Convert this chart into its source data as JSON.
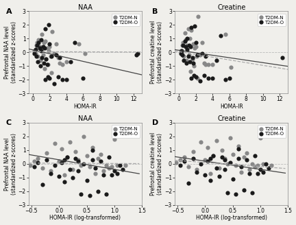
{
  "panels": [
    {
      "label": "A",
      "title": "NAA",
      "xlabel": "HOMA-IR",
      "ylabel": "Prefrontal NAA level\n(standardized z-scores)",
      "xlim": [
        -0.5,
        13
      ],
      "ylim": [
        -3.0,
        3.0
      ],
      "xticks": [
        0,
        2,
        4,
        6,
        8,
        10,
        12
      ],
      "yticks": [
        -3,
        -2,
        -1,
        0,
        1,
        2,
        3
      ],
      "line_dark_slope": -0.14,
      "line_dark_intercept": 0.18,
      "line_gray_slope": -0.002,
      "line_gray_intercept": 0.05,
      "group_gray_x": [
        0.2,
        0.3,
        0.4,
        0.5,
        0.6,
        0.7,
        0.8,
        0.9,
        1.0,
        1.1,
        1.2,
        1.3,
        1.4,
        1.5,
        1.6,
        1.7,
        1.8,
        1.9,
        2.0,
        2.1,
        2.2,
        2.3,
        2.5,
        2.8,
        3.0,
        3.2,
        3.5,
        4.0,
        5.5,
        6.2
      ],
      "group_gray_y": [
        0.1,
        -0.1,
        0.5,
        0.7,
        -0.3,
        0.9,
        0.4,
        -0.6,
        0.2,
        1.3,
        -0.2,
        0.7,
        -1.2,
        0.8,
        -0.5,
        0.3,
        -0.9,
        0.1,
        0.4,
        -0.3,
        -1.5,
        1.5,
        -0.1,
        0.6,
        -0.4,
        -0.8,
        -0.9,
        -0.7,
        0.6,
        -0.1
      ],
      "group_dark_x": [
        0.2,
        0.3,
        0.4,
        0.5,
        0.6,
        0.7,
        0.8,
        0.9,
        1.0,
        1.0,
        1.1,
        1.2,
        1.3,
        1.4,
        1.5,
        1.5,
        1.6,
        1.7,
        1.8,
        1.9,
        2.0,
        2.0,
        2.2,
        2.5,
        2.8,
        3.0,
        3.2,
        3.5,
        4.0,
        4.5,
        5.0,
        6.0,
        12.3,
        12.5
      ],
      "group_dark_y": [
        -0.1,
        0.2,
        -0.3,
        0.5,
        -0.7,
        0.7,
        0.3,
        -1.0,
        0.9,
        0.1,
        -0.4,
        0.4,
        -0.8,
        0.3,
        -2.0,
        1.7,
        -0.5,
        -0.9,
        -1.8,
        2.0,
        -1.9,
        0.6,
        -0.3,
        -2.3,
        -0.2,
        -1.8,
        -0.4,
        -2.0,
        -2.0,
        -0.7,
        0.7,
        -1.9,
        -0.2,
        -0.1
      ]
    },
    {
      "label": "B",
      "title": "Creatine",
      "xlabel": "HOMA-IR",
      "ylabel": "Prefrontal creatine level\n(standardized z-scores)",
      "xlim": [
        -0.5,
        13
      ],
      "ylim": [
        -3.0,
        3.0
      ],
      "xticks": [
        0,
        2,
        4,
        6,
        8,
        10,
        12
      ],
      "yticks": [
        -3,
        -2,
        -1,
        0,
        1,
        2,
        3
      ],
      "line_dark_slope": -0.09,
      "line_dark_intercept": 0.15,
      "line_gray_slope": -0.1,
      "line_gray_intercept": 0.05,
      "group_gray_x": [
        0.2,
        0.3,
        0.4,
        0.5,
        0.6,
        0.7,
        0.8,
        0.9,
        1.0,
        1.1,
        1.2,
        1.3,
        1.4,
        1.5,
        1.6,
        1.7,
        1.8,
        1.9,
        2.0,
        2.1,
        2.2,
        2.3,
        2.5,
        2.8,
        3.0,
        3.2,
        3.5,
        4.0,
        5.5,
        6.2
      ],
      "group_gray_y": [
        0.1,
        -0.1,
        0.5,
        0.7,
        -0.3,
        1.4,
        0.9,
        -0.6,
        0.5,
        1.7,
        -0.2,
        1.0,
        -1.4,
        1.6,
        -0.5,
        0.6,
        -1.0,
        0.3,
        0.4,
        -0.3,
        -1.9,
        2.6,
        -0.2,
        0.7,
        -0.8,
        -0.9,
        -0.9,
        -0.9,
        1.3,
        -1.1
      ],
      "group_dark_x": [
        0.2,
        0.3,
        0.4,
        0.5,
        0.6,
        0.7,
        0.8,
        0.9,
        1.0,
        1.0,
        1.1,
        1.2,
        1.3,
        1.4,
        1.5,
        1.5,
        1.6,
        1.7,
        1.8,
        1.9,
        2.0,
        2.0,
        2.2,
        2.5,
        2.8,
        3.0,
        3.2,
        3.5,
        4.0,
        4.5,
        5.0,
        5.5,
        6.0,
        12.3
      ],
      "group_dark_y": [
        -0.1,
        0.1,
        -0.2,
        0.5,
        -0.6,
        0.8,
        0.4,
        -0.8,
        1.0,
        0.2,
        -0.3,
        0.5,
        -0.7,
        0.4,
        -1.9,
        1.8,
        -0.4,
        -0.8,
        -1.7,
        1.9,
        -1.8,
        0.7,
        -0.2,
        -2.1,
        -0.1,
        -1.7,
        -0.3,
        -1.9,
        -1.9,
        -0.6,
        1.2,
        -2.0,
        -1.9,
        -0.4
      ]
    },
    {
      "label": "C",
      "title": "NAA",
      "xlabel": "HOMA-IR (log-transformed)",
      "ylabel": "Prefrontal NAA level\n(standardized z-scores)",
      "xlim": [
        -0.55,
        1.45
      ],
      "ylim": [
        -3.0,
        3.0
      ],
      "xticks": [
        -0.5,
        0.0,
        0.5,
        1.0,
        1.5
      ],
      "yticks": [
        -3,
        -2,
        -1,
        0,
        1,
        2,
        3
      ],
      "line_dark_slope": -0.7,
      "line_dark_intercept": 0.3,
      "line_gray_slope": -0.02,
      "line_gray_intercept": 0.05,
      "group_gray_x": [
        -0.52,
        -0.45,
        -0.38,
        -0.3,
        -0.22,
        -0.15,
        -0.08,
        0.0,
        0.05,
        0.1,
        0.15,
        0.2,
        0.25,
        0.3,
        0.35,
        0.4,
        0.45,
        0.5,
        0.55,
        0.6,
        0.65,
        0.7,
        0.75,
        0.8,
        0.85,
        0.9,
        0.95,
        1.0,
        1.05,
        1.2
      ],
      "group_gray_y": [
        -0.1,
        0.2,
        0.4,
        -0.3,
        0.8,
        -0.5,
        1.5,
        0.2,
        1.1,
        -0.8,
        0.5,
        1.6,
        -0.4,
        0.9,
        0.3,
        -0.1,
        2.0,
        0.6,
        -0.2,
        1.2,
        -0.7,
        0.4,
        0.7,
        -0.5,
        -0.1,
        -0.3,
        -0.2,
        1.8,
        -0.1,
        -0.1
      ],
      "group_dark_x": [
        -0.45,
        -0.38,
        -0.3,
        -0.22,
        -0.15,
        -0.08,
        0.0,
        0.05,
        0.1,
        0.1,
        0.15,
        0.2,
        0.25,
        0.3,
        0.35,
        0.35,
        0.4,
        0.45,
        0.5,
        0.55,
        0.6,
        0.6,
        0.65,
        0.7,
        0.75,
        0.8,
        0.85,
        0.9,
        0.95,
        1.0,
        1.05,
        1.1,
        1.15
      ],
      "group_dark_y": [
        -0.2,
        0.1,
        -1.5,
        0.3,
        -0.7,
        -0.1,
        -0.9,
        0.1,
        -1.3,
        0.3,
        0.5,
        -0.4,
        -1.0,
        0.4,
        -0.5,
        0.2,
        -2.2,
        0.0,
        -1.2,
        -2.3,
        1.0,
        0.3,
        -0.3,
        -2.0,
        0.2,
        -0.8,
        -2.2,
        0.5,
        -0.8,
        -0.5,
        -0.7,
        -0.1,
        -0.4
      ]
    },
    {
      "label": "D",
      "title": "Creatine",
      "xlabel": "HOMA-IR (log-transformed)",
      "ylabel": "Prefrontal creatine level\n(standardized z-scores)",
      "xlim": [
        -0.55,
        1.45
      ],
      "ylim": [
        -3.0,
        3.0
      ],
      "xticks": [
        -0.5,
        0.0,
        0.5,
        1.0,
        1.5
      ],
      "yticks": [
        -3,
        -2,
        -1,
        0,
        1,
        2,
        3
      ],
      "line_dark_slope": -0.6,
      "line_dark_intercept": 0.2,
      "line_gray_slope": -0.3,
      "line_gray_intercept": 0.1,
      "group_gray_x": [
        -0.52,
        -0.45,
        -0.38,
        -0.3,
        -0.22,
        -0.15,
        -0.08,
        0.0,
        0.05,
        0.1,
        0.15,
        0.2,
        0.25,
        0.3,
        0.35,
        0.4,
        0.45,
        0.5,
        0.55,
        0.6,
        0.65,
        0.7,
        0.75,
        0.8,
        0.85,
        0.9,
        0.95,
        1.0,
        1.05,
        1.2
      ],
      "group_gray_y": [
        0.1,
        0.3,
        0.5,
        -0.2,
        0.9,
        -0.4,
        1.6,
        0.3,
        1.2,
        -0.7,
        0.6,
        1.7,
        -0.3,
        1.0,
        0.4,
        0.0,
        1.9,
        0.7,
        -0.1,
        1.3,
        -0.6,
        0.5,
        0.8,
        -0.4,
        0.0,
        -0.2,
        -0.1,
        1.9,
        0.0,
        -0.1
      ],
      "group_dark_x": [
        -0.45,
        -0.38,
        -0.3,
        -0.22,
        -0.15,
        -0.08,
        0.0,
        0.05,
        0.1,
        0.1,
        0.15,
        0.2,
        0.25,
        0.3,
        0.35,
        0.35,
        0.4,
        0.45,
        0.5,
        0.55,
        0.6,
        0.6,
        0.65,
        0.7,
        0.75,
        0.8,
        0.85,
        0.9,
        0.95,
        1.0,
        1.05,
        1.1,
        1.15
      ],
      "group_dark_y": [
        -0.1,
        0.2,
        -1.4,
        0.4,
        -0.6,
        0.0,
        -0.8,
        0.2,
        -1.2,
        0.4,
        0.6,
        -0.3,
        -0.9,
        0.5,
        -0.4,
        0.3,
        -2.1,
        0.1,
        -1.1,
        -2.2,
        1.1,
        0.4,
        -0.2,
        -1.9,
        0.3,
        -0.7,
        -2.1,
        0.6,
        -0.7,
        -0.4,
        -0.6,
        0.0,
        -0.3
      ]
    }
  ],
  "color_gray": "#888888",
  "color_dark": "#1a1a1a",
  "legend_label1": "T2DM-N",
  "legend_label2": "T2DM-O",
  "marker_size": 20,
  "line_dark_color": "#444444",
  "line_gray_color": "#aaaaaa",
  "bg_color": "#f0efeb",
  "fontsize_title": 7,
  "fontsize_label": 5.5,
  "fontsize_tick": 5.5,
  "fontsize_legend": 5.0,
  "fontsize_panel_label": 8
}
